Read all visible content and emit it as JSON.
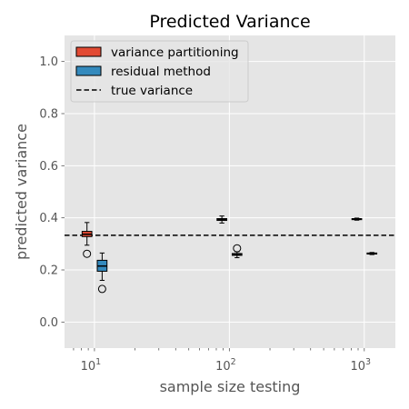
{
  "chart_data": {
    "type": "boxplot",
    "title": "Predicted Variance",
    "xlabel": "sample size testing",
    "ylabel": "predicted variance",
    "xscale": "log",
    "xlim": [
      6,
      1700
    ],
    "ylim": [
      -0.1,
      1.1
    ],
    "x_ticks": [
      {
        "base": "10",
        "exp": "1",
        "value": 10
      },
      {
        "base": "10",
        "exp": "2",
        "value": 100
      },
      {
        "base": "10",
        "exp": "3",
        "value": 1000
      }
    ],
    "y_ticks": [
      {
        "label": "0.0",
        "value": 0.0
      },
      {
        "label": "0.2",
        "value": 0.2
      },
      {
        "label": "0.4",
        "value": 0.4
      },
      {
        "label": "0.6",
        "value": 0.6
      },
      {
        "label": "0.8",
        "value": 0.8
      },
      {
        "label": "1.0",
        "value": 1.0
      }
    ],
    "grid": true,
    "legend_position": "top-left",
    "true_variance": 0.333,
    "series": [
      {
        "name": "variance partitioning",
        "color": "#E24A33",
        "boxes": [
          {
            "x": 8.8,
            "q1": 0.328,
            "median": 0.337,
            "q3": 0.348,
            "whisker_low": 0.295,
            "whisker_high": 0.382,
            "outliers": [
              0.262
            ]
          },
          {
            "x": 88,
            "q1": 0.39,
            "median": 0.393,
            "q3": 0.397,
            "whisker_low": 0.38,
            "whisker_high": 0.407,
            "outliers": []
          },
          {
            "x": 880,
            "q1": 0.393,
            "median": 0.395,
            "q3": 0.397,
            "whisker_low": 0.391,
            "whisker_high": 0.399,
            "outliers": []
          }
        ]
      },
      {
        "name": "residual method",
        "color": "#348ABD",
        "boxes": [
          {
            "x": 11.4,
            "q1": 0.195,
            "median": 0.215,
            "q3": 0.237,
            "whisker_low": 0.16,
            "whisker_high": 0.265,
            "outliers": [
              0.127
            ]
          },
          {
            "x": 114,
            "q1": 0.256,
            "median": 0.259,
            "q3": 0.263,
            "whisker_low": 0.247,
            "whisker_high": 0.27,
            "outliers": [
              0.283
            ]
          },
          {
            "x": 1140,
            "q1": 0.261,
            "median": 0.263,
            "q3": 0.265,
            "whisker_low": 0.259,
            "whisker_high": 0.267,
            "outliers": []
          }
        ]
      }
    ],
    "legend": [
      {
        "label": "variance partitioning",
        "kind": "patch",
        "color": "#E24A33"
      },
      {
        "label": "residual method",
        "kind": "patch",
        "color": "#348ABD"
      },
      {
        "label": "true variance",
        "kind": "dashed-line",
        "color": "#000000"
      }
    ]
  }
}
